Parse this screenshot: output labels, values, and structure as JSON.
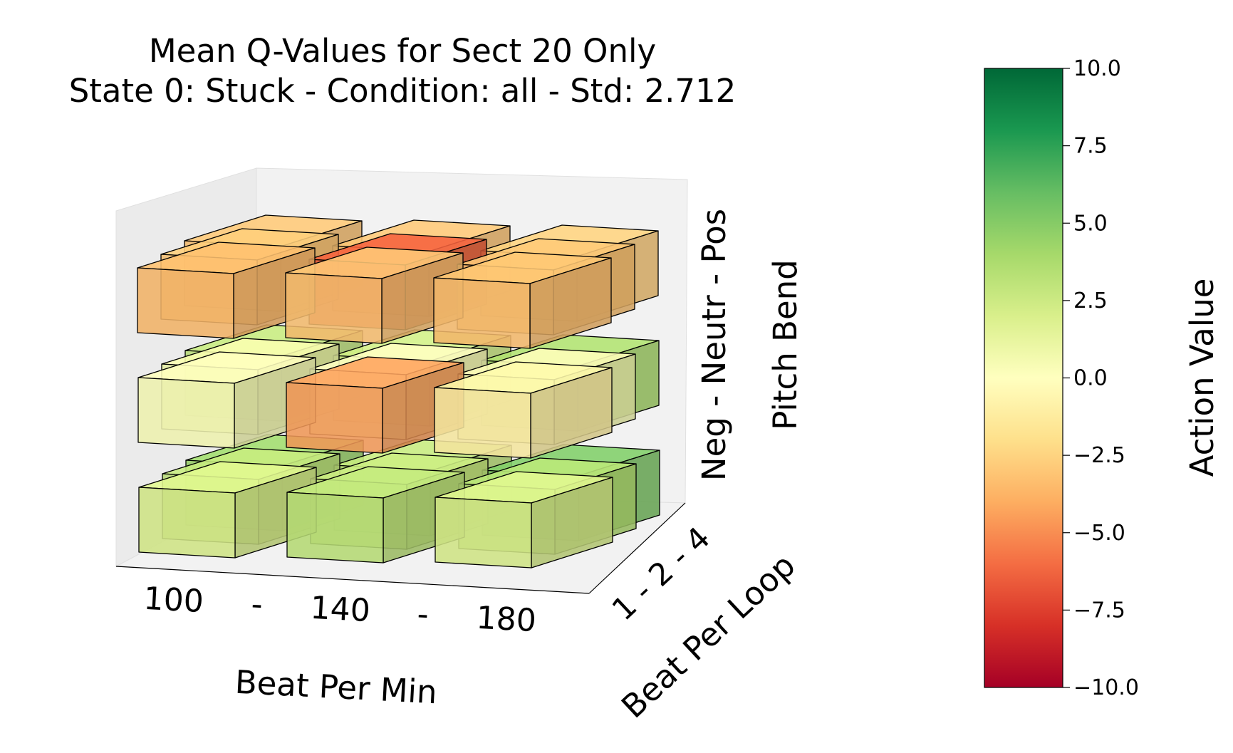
{
  "chart_data": {
    "type": "3d-voxel",
    "title_line1": "Mean Q-Values for Sect 20 Only",
    "title_line2": "State 0: Stuck  -  Condition: all  -  Std: 2.712",
    "axes": {
      "x": {
        "label": "Beat Per Min",
        "ticks": [
          "100",
          "-",
          "140",
          "-",
          "180"
        ]
      },
      "y": {
        "label": "Beat Per Loop",
        "ticks": "1 - 2 - 4"
      },
      "z": {
        "label": "Pitch Bend",
        "ticks": "Neg - Neutr - Pos"
      }
    },
    "bpm_levels": [
      "100",
      "140",
      "180"
    ],
    "loop_levels": [
      "1",
      "2",
      "4"
    ],
    "pitch_levels": [
      "Neg",
      "Neutr",
      "Pos"
    ],
    "values": [
      {
        "bpm": "100",
        "loop": "1",
        "pitch": "Pos",
        "value": -3.5
      },
      {
        "bpm": "100",
        "loop": "2",
        "pitch": "Pos",
        "value": -3.0
      },
      {
        "bpm": "100",
        "loop": "4",
        "pitch": "Pos",
        "value": -3.2
      },
      {
        "bpm": "140",
        "loop": "1",
        "pitch": "Pos",
        "value": -3.2
      },
      {
        "bpm": "140",
        "loop": "2",
        "pitch": "Pos",
        "value": -6.5
      },
      {
        "bpm": "140",
        "loop": "4",
        "pitch": "Pos",
        "value": -3.2
      },
      {
        "bpm": "180",
        "loop": "1",
        "pitch": "Pos",
        "value": -3.3
      },
      {
        "bpm": "180",
        "loop": "2",
        "pitch": "Pos",
        "value": -3.2
      },
      {
        "bpm": "180",
        "loop": "4",
        "pitch": "Pos",
        "value": -2.8
      },
      {
        "bpm": "100",
        "loop": "1",
        "pitch": "Neutr",
        "value": 0.3
      },
      {
        "bpm": "100",
        "loop": "2",
        "pitch": "Neutr",
        "value": 0.8
      },
      {
        "bpm": "100",
        "loop": "4",
        "pitch": "Neutr",
        "value": 3.0
      },
      {
        "bpm": "140",
        "loop": "1",
        "pitch": "Neutr",
        "value": -4.5
      },
      {
        "bpm": "140",
        "loop": "2",
        "pitch": "Neutr",
        "value": 0.2
      },
      {
        "bpm": "140",
        "loop": "4",
        "pitch": "Neutr",
        "value": 2.5
      },
      {
        "bpm": "180",
        "loop": "1",
        "pitch": "Neutr",
        "value": -1.0
      },
      {
        "bpm": "180",
        "loop": "2",
        "pitch": "Neutr",
        "value": 0.5
      },
      {
        "bpm": "180",
        "loop": "4",
        "pitch": "Neutr",
        "value": 3.8
      },
      {
        "bpm": "100",
        "loop": "1",
        "pitch": "Neg",
        "value": 2.0
      },
      {
        "bpm": "100",
        "loop": "2",
        "pitch": "Neg",
        "value": 3.0
      },
      {
        "bpm": "100",
        "loop": "4",
        "pitch": "Neg",
        "value": 4.3
      },
      {
        "bpm": "140",
        "loop": "1",
        "pitch": "Neg",
        "value": 3.1
      },
      {
        "bpm": "140",
        "loop": "2",
        "pitch": "Neg",
        "value": 2.8
      },
      {
        "bpm": "140",
        "loop": "4",
        "pitch": "Neg",
        "value": 3.0
      },
      {
        "bpm": "180",
        "loop": "1",
        "pitch": "Neg",
        "value": 2.0
      },
      {
        "bpm": "180",
        "loop": "2",
        "pitch": "Neg",
        "value": 3.4
      },
      {
        "bpm": "180",
        "loop": "4",
        "pitch": "Neg",
        "value": 5.3
      }
    ],
    "colorbar": {
      "label": "Action Value",
      "colormap": "RdYlGn",
      "range": [
        -10,
        10
      ],
      "ticks": [
        "10.0",
        "7.5",
        "5.0",
        "2.5",
        "0.0",
        "−2.5",
        "−5.0",
        "−7.5",
        "−10.0"
      ]
    }
  }
}
